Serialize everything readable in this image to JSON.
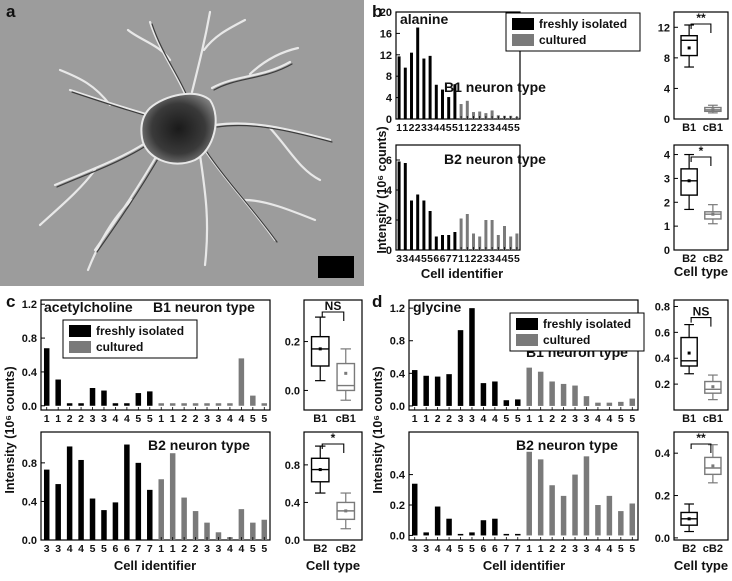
{
  "panel_letters": {
    "a": "a",
    "b": "b",
    "c": "c",
    "d": "d"
  },
  "legend": {
    "freshly": "freshly isolated",
    "cultured": "cultured"
  },
  "colors": {
    "freshly": "#000000",
    "cultured": "#7a7a7a",
    "micrograph_bg": "#9a9a9a"
  },
  "chart_data": [
    {
      "id": "b-top",
      "type": "bar",
      "title": "alanine",
      "subtitle": "B1 neuron type",
      "ylim": [
        0,
        20
      ],
      "yticks": [
        0,
        4,
        8,
        12,
        16,
        20
      ],
      "categories": [
        "1",
        "1",
        "2",
        "2",
        "3",
        "3",
        "4",
        "4",
        "5",
        "5",
        "1",
        "1",
        "2",
        "2",
        "3",
        "3",
        "4",
        "4",
        "5",
        "5"
      ],
      "series": [
        {
          "name": "freshly isolated",
          "values": [
            11.7,
            9.6,
            12.4,
            17.1,
            11.3,
            11.8,
            6.4,
            5.5,
            4.1,
            6.5,
            null,
            null,
            null,
            null,
            null,
            null,
            null,
            null,
            null,
            null
          ]
        },
        {
          "name": "cultured",
          "values": [
            null,
            null,
            null,
            null,
            null,
            null,
            null,
            null,
            null,
            null,
            2.8,
            3.4,
            1.3,
            1.4,
            1.1,
            1.6,
            0.7,
            0.6,
            0.6,
            0.4
          ]
        }
      ]
    },
    {
      "id": "b-bottom",
      "type": "bar",
      "subtitle": "B2 neuron type",
      "ylim": [
        0,
        7
      ],
      "yticks": [
        0,
        2,
        4,
        6
      ],
      "categories": [
        "3",
        "3",
        "4",
        "4",
        "5",
        "5",
        "6",
        "6",
        "7",
        "7",
        "1",
        "1",
        "2",
        "2",
        "3",
        "3",
        "4",
        "4",
        "5",
        "5"
      ],
      "series": [
        {
          "name": "freshly isolated",
          "values": [
            5.9,
            5.8,
            3.3,
            3.7,
            3.3,
            2.6,
            0.9,
            1.0,
            1.0,
            1.2,
            null,
            null,
            null,
            null,
            null,
            null,
            null,
            null,
            null,
            null
          ]
        },
        {
          "name": "cultured",
          "values": [
            null,
            null,
            null,
            null,
            null,
            null,
            null,
            null,
            null,
            null,
            2.1,
            2.4,
            1.1,
            0.9,
            2.0,
            2.0,
            1.0,
            1.6,
            0.9,
            1.1
          ]
        }
      ]
    },
    {
      "id": "c-top",
      "type": "bar",
      "title": "acetylcholine",
      "subtitle": "B1 neuron type",
      "ylim": [
        -0.05,
        1.25
      ],
      "yticks": [
        0,
        0.4,
        0.8,
        1.2
      ],
      "categories": [
        "1",
        "1",
        "2",
        "2",
        "3",
        "3",
        "4",
        "4",
        "5",
        "5",
        "1",
        "1",
        "2",
        "2",
        "3",
        "3",
        "4",
        "4",
        "5",
        "5"
      ],
      "series": [
        {
          "name": "freshly isolated",
          "values": [
            0.68,
            0.31,
            0.03,
            0.03,
            0.21,
            0.18,
            0.03,
            0.03,
            0.15,
            0.17,
            null,
            null,
            null,
            null,
            null,
            null,
            null,
            null,
            null,
            null
          ]
        },
        {
          "name": "cultured",
          "values": [
            null,
            null,
            null,
            null,
            null,
            null,
            null,
            null,
            null,
            null,
            0.03,
            0.03,
            0.03,
            0.03,
            0.03,
            0.03,
            0.03,
            0.56,
            0.12,
            0.03
          ]
        }
      ]
    },
    {
      "id": "c-bottom",
      "type": "bar",
      "subtitle": "B2 neuron type",
      "ylim": [
        0,
        1.12
      ],
      "yticks": [
        0,
        0.4,
        0.8
      ],
      "categories": [
        "3",
        "3",
        "4",
        "4",
        "5",
        "5",
        "6",
        "6",
        "7",
        "7",
        "1",
        "1",
        "2",
        "2",
        "3",
        "3",
        "4",
        "4",
        "5",
        "5"
      ],
      "series": [
        {
          "name": "freshly isolated",
          "values": [
            0.73,
            0.58,
            0.97,
            0.83,
            0.43,
            0.31,
            0.39,
            0.99,
            0.8,
            0.52,
            null,
            null,
            null,
            null,
            null,
            null,
            null,
            null,
            null,
            null
          ]
        },
        {
          "name": "cultured",
          "values": [
            null,
            null,
            null,
            null,
            null,
            null,
            null,
            null,
            null,
            null,
            0.63,
            0.9,
            0.44,
            0.3,
            0.18,
            0.08,
            0.03,
            0.32,
            0.18,
            0.21
          ]
        }
      ]
    },
    {
      "id": "d-top",
      "type": "bar",
      "title": "glycine",
      "subtitle": "B1 neuron type",
      "ylim": [
        -0.05,
        1.3
      ],
      "yticks": [
        0,
        0.4,
        0.8,
        1.2
      ],
      "categories": [
        "1",
        "1",
        "2",
        "2",
        "3",
        "3",
        "4",
        "4",
        "5",
        "5",
        "1",
        "1",
        "2",
        "2",
        "3",
        "3",
        "4",
        "4",
        "5",
        "5"
      ],
      "series": [
        {
          "name": "freshly isolated",
          "values": [
            0.44,
            0.37,
            0.36,
            0.39,
            0.93,
            1.2,
            0.28,
            0.3,
            0.07,
            0.08,
            null,
            null,
            null,
            null,
            null,
            null,
            null,
            null,
            null,
            null
          ]
        },
        {
          "name": "cultured",
          "values": [
            null,
            null,
            null,
            null,
            null,
            null,
            null,
            null,
            null,
            null,
            0.47,
            0.42,
            0.3,
            0.27,
            0.25,
            0.12,
            0.04,
            0.04,
            0.05,
            0.09
          ]
        }
      ]
    },
    {
      "id": "d-bottom",
      "type": "bar",
      "subtitle": "B2 neuron type",
      "ylim": [
        -0.03,
        0.68
      ],
      "yticks": [
        0,
        0.2,
        0.4
      ],
      "categories": [
        "3",
        "3",
        "4",
        "4",
        "5",
        "5",
        "6",
        "6",
        "7",
        "7",
        "1",
        "1",
        "2",
        "2",
        "3",
        "3",
        "4",
        "4",
        "5",
        "5"
      ],
      "series": [
        {
          "name": "freshly isolated",
          "values": [
            0.34,
            0.02,
            0.19,
            0.11,
            0.01,
            0.02,
            0.1,
            0.11,
            0.01,
            0.01,
            null,
            null,
            null,
            null,
            null,
            null,
            null,
            null,
            null,
            null
          ]
        },
        {
          "name": "cultured",
          "values": [
            null,
            null,
            null,
            null,
            null,
            null,
            null,
            null,
            null,
            null,
            0.55,
            0.5,
            0.33,
            0.26,
            0.4,
            0.52,
            0.2,
            0.26,
            0.16,
            0.21
          ]
        }
      ]
    },
    {
      "id": "b-box1",
      "type": "box",
      "ylim": [
        0,
        14
      ],
      "yticks": [
        0,
        4,
        8,
        12
      ],
      "categories": [
        "B1",
        "cB1"
      ],
      "significance": "**",
      "boxes": [
        {
          "min": 6.8,
          "q1": 8.3,
          "median": 10.3,
          "q3": 10.9,
          "max": 12.3,
          "mean": 9.3
        },
        {
          "min": 0.8,
          "q1": 1.0,
          "median": 1.2,
          "q3": 1.5,
          "max": 1.8,
          "mean": 1.2
        }
      ]
    },
    {
      "id": "b-box2",
      "type": "box",
      "ylim": [
        0,
        4.4
      ],
      "yticks": [
        0,
        1,
        2,
        3,
        4
      ],
      "categories": [
        "B2",
        "cB2"
      ],
      "significance": "*",
      "boxes": [
        {
          "min": 1.7,
          "q1": 2.3,
          "median": 2.9,
          "q3": 3.4,
          "max": 4.0,
          "mean": 2.9
        },
        {
          "min": 1.1,
          "q1": 1.3,
          "median": 1.5,
          "q3": 1.6,
          "max": 1.9,
          "mean": 1.5
        }
      ]
    },
    {
      "id": "c-box1",
      "type": "box",
      "ylim": [
        -0.08,
        0.37
      ],
      "yticks": [
        0.0,
        0.2
      ],
      "categories": [
        "B1",
        "cB1"
      ],
      "significance": "NS",
      "boxes": [
        {
          "min": 0.04,
          "q1": 0.1,
          "median": 0.17,
          "q3": 0.22,
          "max": 0.3,
          "mean": 0.17
        },
        {
          "min": -0.04,
          "q1": 0.0,
          "median": 0.02,
          "q3": 0.11,
          "max": 0.17,
          "mean": 0.07
        }
      ]
    },
    {
      "id": "c-box2",
      "type": "box",
      "ylim": [
        0,
        1.15
      ],
      "yticks": [
        0,
        0.4,
        0.8
      ],
      "categories": [
        "B2",
        "cB2"
      ],
      "significance": "*",
      "boxes": [
        {
          "min": 0.5,
          "q1": 0.62,
          "median": 0.75,
          "q3": 0.87,
          "max": 1.0,
          "mean": 0.75
        },
        {
          "min": 0.12,
          "q1": 0.22,
          "median": 0.31,
          "q3": 0.4,
          "max": 0.5,
          "mean": 0.31
        }
      ]
    },
    {
      "id": "d-box1",
      "type": "box",
      "ylim": [
        0,
        0.85
      ],
      "yticks": [
        0.2,
        0.4,
        0.6,
        0.8
      ],
      "categories": [
        "B1",
        "cB1"
      ],
      "significance": "NS",
      "boxes": [
        {
          "min": 0.28,
          "q1": 0.34,
          "median": 0.38,
          "q3": 0.56,
          "max": 0.66,
          "mean": 0.44
        },
        {
          "min": 0.08,
          "q1": 0.13,
          "median": 0.16,
          "q3": 0.22,
          "max": 0.27,
          "mean": 0.18
        }
      ]
    },
    {
      "id": "d-box2",
      "type": "box",
      "ylim": [
        -0.01,
        0.5
      ],
      "yticks": [
        0.0,
        0.2,
        0.4
      ],
      "categories": [
        "B2",
        "cB2"
      ],
      "significance": "**",
      "boxes": [
        {
          "min": 0.03,
          "q1": 0.06,
          "median": 0.09,
          "q3": 0.12,
          "max": 0.16,
          "mean": 0.09
        },
        {
          "min": 0.26,
          "q1": 0.3,
          "median": 0.33,
          "q3": 0.38,
          "max": 0.44,
          "mean": 0.34
        }
      ]
    }
  ],
  "labels": {
    "ylabel": "Intensity (10⁶ counts)",
    "xlabel_cells": "Cell identifier",
    "xlabel_type": "Cell type"
  }
}
